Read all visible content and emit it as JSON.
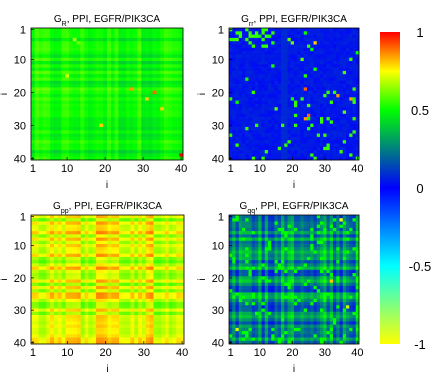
{
  "chart_data": [
    {
      "type": "heatmap",
      "title": "G",
      "title_sub": "R",
      "title_rest": ", PPI, EGFR/PIK3CA",
      "xlabel": "i",
      "ylabel": "i",
      "xlim": [
        1,
        40
      ],
      "ylim": [
        1,
        40
      ],
      "xticks": [
        "1",
        "10",
        "20",
        "30",
        "40"
      ],
      "yticks": [
        "1",
        "10",
        "20",
        "30",
        "40"
      ],
      "pattern": "gr",
      "value_range": [
        0.38,
        0.62
      ],
      "hotspots": [
        [
          4,
          12,
          0.65
        ],
        [
          5,
          13,
          0.6
        ],
        [
          15,
          10,
          0.7
        ],
        [
          19,
          27,
          0.85
        ],
        [
          20,
          33,
          0.9
        ],
        [
          22,
          31,
          0.8
        ],
        [
          30,
          19,
          0.8
        ],
        [
          39,
          40,
          1.0
        ],
        [
          25,
          35,
          0.8
        ]
      ]
    },
    {
      "type": "heatmap",
      "title": "G",
      "title_sub": "rr",
      "title_rest": ", PPI, EGFR/PIK3CA",
      "xlabel": "i",
      "ylabel": "i",
      "xlim": [
        1,
        40
      ],
      "ylim": [
        1,
        40
      ],
      "xticks": [
        "1",
        "10",
        "20",
        "30",
        "40"
      ],
      "yticks": [
        "1",
        "10",
        "20",
        "30",
        "40"
      ],
      "pattern": "grr",
      "value_range": [
        0.0,
        0.6
      ],
      "hotspots": [
        [
          19,
          24,
          0.9
        ],
        [
          21,
          34,
          0.85
        ],
        [
          27,
          25,
          0.9
        ],
        [
          28,
          24,
          0.85
        ],
        [
          22,
          38,
          0.85
        ],
        [
          5,
          27,
          0.8
        ]
      ]
    },
    {
      "type": "heatmap",
      "title": "G",
      "title_sub": "pp",
      "title_rest": ", PPI, EGFR/PIK3CA",
      "xlabel": "i",
      "ylabel": "i",
      "xlim": [
        1,
        40
      ],
      "ylim": [
        1,
        40
      ],
      "xticks": [
        "1",
        "10",
        "20",
        "30",
        "40"
      ],
      "yticks": [
        "1",
        "10",
        "20",
        "30",
        "40"
      ],
      "pattern": "gpp",
      "value_range": [
        0.55,
        0.9
      ],
      "hotspots": []
    },
    {
      "type": "heatmap",
      "title": "G",
      "title_sub": "qq",
      "title_rest": ", PPI, EGFR/PIK3CA",
      "xlabel": "i",
      "ylabel": "i",
      "xlim": [
        1,
        40
      ],
      "ylim": [
        1,
        40
      ],
      "xticks": [
        "1",
        "10",
        "20",
        "30",
        "40"
      ],
      "yticks": [
        "1",
        "10",
        "20",
        "30",
        "40"
      ],
      "pattern": "gqq",
      "value_range": [
        0.0,
        0.55
      ],
      "hotspots": [
        [
          2,
          35,
          0.75
        ],
        [
          21,
          32,
          0.8
        ],
        [
          29,
          37,
          0.7
        ],
        [
          36,
          3,
          0.7
        ]
      ]
    }
  ],
  "colorbar": {
    "min": -1,
    "max": 1,
    "ticks": [
      "1",
      "0.5",
      "0",
      "-0.5",
      "-1"
    ],
    "tick_values": [
      1,
      0.5,
      0,
      -0.5,
      -1
    ],
    "colors": [
      "#ff0000",
      "#ff8000",
      "#ffff00",
      "#00ff00",
      "#00ffff",
      "#0000ff",
      "#00ffff",
      "#ffff00"
    ]
  }
}
